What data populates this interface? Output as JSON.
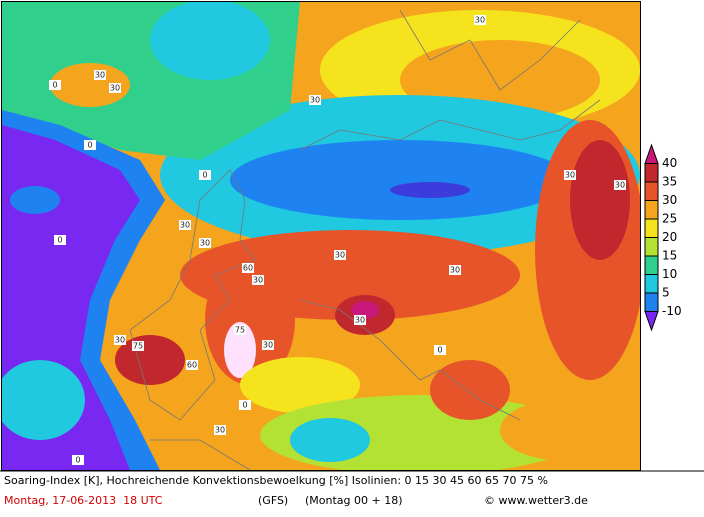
{
  "map": {
    "isoline_labels": [
      "30",
      "30",
      "0",
      "0",
      "0",
      "30",
      "30",
      "60",
      "30",
      "75",
      "30",
      "75",
      "30",
      "60",
      "30",
      "0",
      "30",
      "30",
      "30",
      "0",
      "30",
      "30",
      "30",
      "30",
      "0",
      "0"
    ],
    "legend": {
      "labels": [
        40,
        35,
        30,
        25,
        20,
        15,
        10,
        5,
        -10
      ],
      "colors": [
        "#c8197a",
        "#c0282d",
        "#e8542a",
        "#f5a41d",
        "#f5e31d",
        "#b4e234",
        "#30d08c",
        "#20c8e0",
        "#1e82f0",
        "#7828f0"
      ]
    }
  },
  "footer": {
    "description": "Soaring-Index [K], Hochreichende Konvektionsbewoelkung [%] Isolinien: 0 15 30 45 60 65 70 75 %",
    "date": "Montag, 17-06-2013  18 UTC",
    "model": "(GFS)",
    "run": "(Montag 00 + 18)",
    "source": "© www.wetter3.de"
  }
}
